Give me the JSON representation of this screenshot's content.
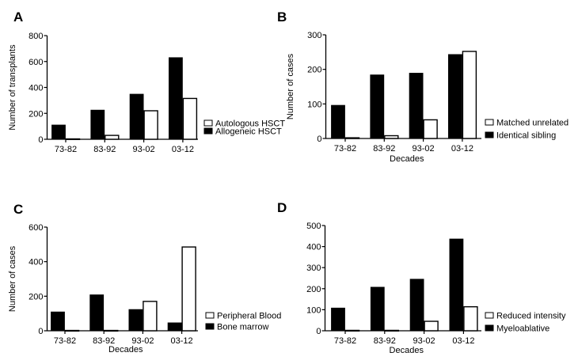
{
  "colors": {
    "series_filled": "#000000",
    "series_open": "#ffffff",
    "stroke": "#000000"
  },
  "chart_data": [
    {
      "panel": "A",
      "type": "bar",
      "categories": [
        "73-82",
        "83-92",
        "93-02",
        "03-12"
      ],
      "series": [
        {
          "name": "Allogeneic HSCT",
          "fill": "black",
          "values": [
            110,
            225,
            348,
            630
          ]
        },
        {
          "name": "Autologous HSCT",
          "fill": "white",
          "values": [
            3,
            30,
            220,
            315
          ]
        }
      ],
      "legend_order": [
        "Autologous HSCT",
        "Allogeneic HSCT"
      ],
      "title": "",
      "xlabel": "",
      "ylabel": "Number of transplants",
      "ylim": [
        0,
        800
      ],
      "yticks": [
        "0",
        "200",
        "400",
        "600",
        "800"
      ],
      "grid": false,
      "legend_position": "right"
    },
    {
      "panel": "B",
      "type": "bar",
      "categories": [
        "73-82",
        "83-92",
        "93-02",
        "03-12"
      ],
      "series": [
        {
          "name": "Identical sibling",
          "fill": "black",
          "values": [
            96,
            184,
            189,
            243
          ]
        },
        {
          "name": "Matched unrelated",
          "fill": "white",
          "values": [
            2,
            8,
            54,
            252
          ]
        }
      ],
      "legend_order": [
        "Matched unrelated",
        "Identical sibling"
      ],
      "title": "",
      "xlabel": "Decades",
      "ylabel": "Number of cases",
      "ylim": [
        0,
        300
      ],
      "yticks": [
        "0",
        "100",
        "200",
        "300"
      ],
      "grid": false,
      "legend_position": "right"
    },
    {
      "panel": "C",
      "type": "bar",
      "categories": [
        "73-82",
        "83-92",
        "93-02",
        "03-12"
      ],
      "series": [
        {
          "name": "Bone marrow",
          "fill": "black",
          "values": [
            109,
            208,
            123,
            46
          ]
        },
        {
          "name": "Peripheral Blood",
          "fill": "white",
          "values": [
            2,
            2,
            170,
            485
          ]
        }
      ],
      "legend_order": [
        "Peripheral Blood",
        "Bone marrow"
      ],
      "title": "",
      "xlabel": "Decades",
      "ylabel": "Number of cases",
      "ylim": [
        0,
        600
      ],
      "yticks": [
        "0",
        "200",
        "400",
        "600"
      ],
      "grid": false,
      "legend_position": "right"
    },
    {
      "panel": "D",
      "type": "bar",
      "categories": [
        "73-82",
        "83-92",
        "93-02",
        "03-12"
      ],
      "series": [
        {
          "name": "Myeloablative",
          "fill": "black",
          "values": [
            108,
            207,
            245,
            436
          ]
        },
        {
          "name": "Reduced intensity",
          "fill": "white",
          "values": [
            2,
            2,
            45,
            114
          ]
        }
      ],
      "legend_order": [
        "Reduced intensity",
        "Myeloablative"
      ],
      "title": "",
      "xlabel": "Decades",
      "ylabel": "",
      "ylim": [
        0,
        500
      ],
      "yticks": [
        "0",
        "100",
        "200",
        "300",
        "400",
        "500"
      ],
      "grid": false,
      "legend_position": "right"
    }
  ]
}
